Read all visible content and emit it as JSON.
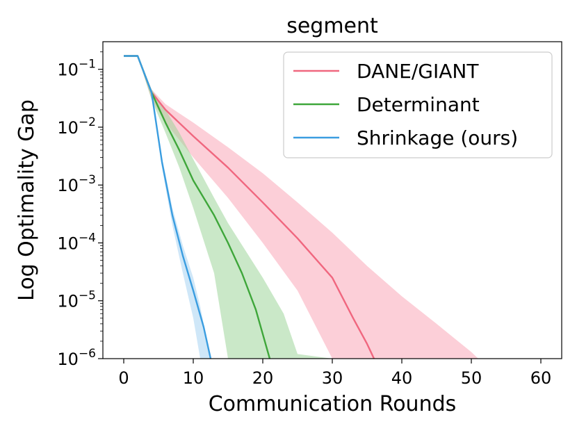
{
  "chart_data": {
    "type": "line",
    "title": "segment",
    "xlabel": "Communication Rounds",
    "ylabel": "Log Optimality Gap",
    "yscale": "log",
    "xlim": [
      -3,
      63
    ],
    "ylim": [
      1e-06,
      0.3
    ],
    "xticks": [
      0,
      10,
      20,
      30,
      40,
      50,
      60
    ],
    "xtick_labels": [
      "0",
      "10",
      "20",
      "30",
      "40",
      "50",
      "60"
    ],
    "yticks": [
      0.1,
      0.01,
      0.001,
      0.0001,
      1e-05,
      1e-06
    ],
    "ytick_labels": [
      {
        "base": "10",
        "exp": "−1"
      },
      {
        "base": "10",
        "exp": "−2"
      },
      {
        "base": "10",
        "exp": "−3"
      },
      {
        "base": "10",
        "exp": "−4"
      },
      {
        "base": "10",
        "exp": "−5"
      },
      {
        "base": "10",
        "exp": "−6"
      }
    ],
    "legend_position": "top-right",
    "series": [
      {
        "name": "DANE/GIANT",
        "color": "#f0677f",
        "band_color": "#f9a8b8",
        "x": [
          0,
          2,
          4,
          6,
          10,
          15,
          20,
          25,
          30,
          33,
          35,
          36
        ],
        "y": [
          0.17,
          0.17,
          0.04,
          0.02,
          0.007,
          0.002,
          0.0005,
          0.00012,
          2.5e-05,
          5e-06,
          1.8e-06,
          1e-06
        ],
        "band_x": [
          2,
          4,
          6,
          10,
          15,
          20,
          25,
          30,
          35,
          40,
          45,
          50,
          51
        ],
        "band_low": [
          0.17,
          0.03,
          0.012,
          0.003,
          0.0006,
          0.0001,
          1.5e-05,
          1e-06,
          1e-06,
          1e-06,
          1e-06,
          1e-06,
          1e-06
        ],
        "band_high": [
          0.17,
          0.045,
          0.025,
          0.012,
          0.0045,
          0.0016,
          0.0005,
          0.00015,
          4e-05,
          1.2e-05,
          4e-06,
          1.3e-06,
          1e-06
        ]
      },
      {
        "name": "Determinant",
        "color": "#3ea63a",
        "band_color": "#9fd69a",
        "x": [
          0,
          2,
          4,
          6,
          8,
          10,
          13,
          15,
          17,
          19,
          21
        ],
        "y": [
          0.17,
          0.17,
          0.04,
          0.012,
          0.004,
          0.0012,
          0.0003,
          0.0001,
          3e-05,
          7e-06,
          1e-06
        ],
        "band_x": [
          2,
          4,
          6,
          8,
          10,
          13,
          15,
          20,
          23,
          25,
          30
        ],
        "band_low": [
          0.17,
          0.03,
          0.008,
          0.002,
          0.0004,
          3e-05,
          1e-06,
          1e-06,
          1e-06,
          1e-06,
          1e-06
        ],
        "band_high": [
          0.17,
          0.045,
          0.02,
          0.008,
          0.0028,
          0.0006,
          0.00022,
          2.5e-05,
          6e-06,
          1.2e-06,
          1e-06
        ]
      },
      {
        "name": "Shrinkage (ours)",
        "color": "#3a9de0",
        "band_color": "#a8d3f2",
        "x": [
          0,
          2,
          4,
          5.5,
          7,
          8.5,
          10,
          11.5,
          12.5
        ],
        "y": [
          0.17,
          0.17,
          0.04,
          0.0025,
          0.0003,
          6e-05,
          1.5e-05,
          3.5e-06,
          1e-06
        ],
        "band_x": [
          2,
          4,
          5.5,
          7,
          8.5,
          10,
          11,
          12.5
        ],
        "band_low": [
          0.17,
          0.04,
          0.002,
          0.0002,
          3e-05,
          5e-06,
          1e-06,
          1e-06
        ],
        "band_high": [
          0.17,
          0.045,
          0.003,
          0.0004,
          9e-05,
          2.5e-05,
          8e-06,
          1e-06
        ]
      }
    ]
  }
}
